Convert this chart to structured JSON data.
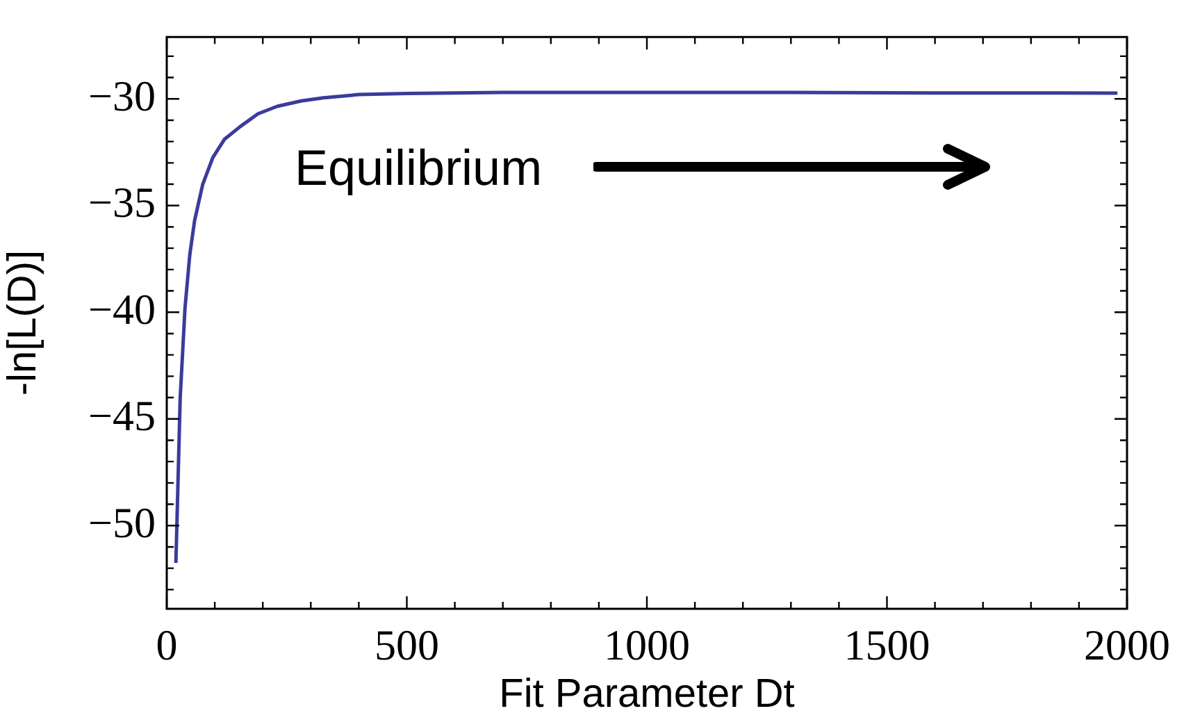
{
  "chart_data": {
    "type": "line",
    "xlabel": "Fit Parameter Dt",
    "ylabel": "-ln[L(D)]",
    "x": [
      19,
      28,
      38,
      48,
      58,
      75,
      96,
      120,
      153,
      190,
      230,
      280,
      326,
      400,
      500,
      700,
      1000,
      1300,
      1600,
      1980
    ],
    "series": [
      {
        "color": "#3b3b9b",
        "values": [
          -51.75,
          -44,
          -39.8,
          -37.3,
          -35.7,
          -34,
          -32.75,
          -31.9,
          -31.3,
          -30.7,
          -30.35,
          -30.1,
          -29.95,
          -29.8,
          -29.75,
          -29.7,
          -29.7,
          -29.7,
          -29.72,
          -29.73
        ]
      }
    ],
    "xlim": [
      0,
      2000
    ],
    "xticks": [
      0,
      {
        "value": 100,
        "label": null
      },
      {
        "value": 200,
        "label": null
      },
      {
        "value": 300,
        "label": null
      },
      {
        "value": 400,
        "label": null
      },
      500,
      {
        "value": 600,
        "label": null
      },
      {
        "value": 700,
        "label": null
      },
      {
        "value": 800,
        "label": null
      },
      {
        "value": 900,
        "label": null
      },
      1000,
      {
        "value": 1100,
        "label": null
      },
      {
        "value": 1200,
        "label": null
      },
      {
        "value": 1300,
        "label": null
      },
      {
        "value": 1400,
        "label": null
      },
      1500,
      {
        "value": 1600,
        "label": null
      },
      {
        "value": 1700,
        "label": null
      },
      {
        "value": 1800,
        "label": null
      },
      {
        "value": 1900,
        "label": null
      },
      2000
    ],
    "ylim": [
      -53.9,
      -27.1
    ],
    "yticks": [
      {
        "value": -53,
        "label": null
      },
      {
        "value": -52,
        "label": null
      },
      {
        "value": -51,
        "label": null
      },
      {
        "value": -50,
        "label": "−50"
      },
      {
        "value": -49,
        "label": null
      },
      {
        "value": -48,
        "label": null
      },
      {
        "value": -47,
        "label": null
      },
      {
        "value": -46,
        "label": null
      },
      {
        "value": -45,
        "label": "−45"
      },
      {
        "value": -44,
        "label": null
      },
      {
        "value": -43,
        "label": null
      },
      {
        "value": -42,
        "label": null
      },
      {
        "value": -41,
        "label": null
      },
      {
        "value": -40,
        "label": "−40"
      },
      {
        "value": -39,
        "label": null
      },
      {
        "value": -38,
        "label": null
      },
      {
        "value": -37,
        "label": null
      },
      {
        "value": -36,
        "label": null
      },
      {
        "value": -35,
        "label": "−35"
      },
      {
        "value": -34,
        "label": null
      },
      {
        "value": -33,
        "label": null
      },
      {
        "value": -32,
        "label": null
      },
      {
        "value": -31,
        "label": null
      },
      {
        "value": -30,
        "label": "−30"
      },
      {
        "value": -29,
        "label": null
      },
      {
        "value": -28,
        "label": null
      }
    ],
    "annotations": [
      "Equilibrium"
    ],
    "grid": false,
    "legend": false,
    "marker": "none",
    "line_style": "solid"
  }
}
